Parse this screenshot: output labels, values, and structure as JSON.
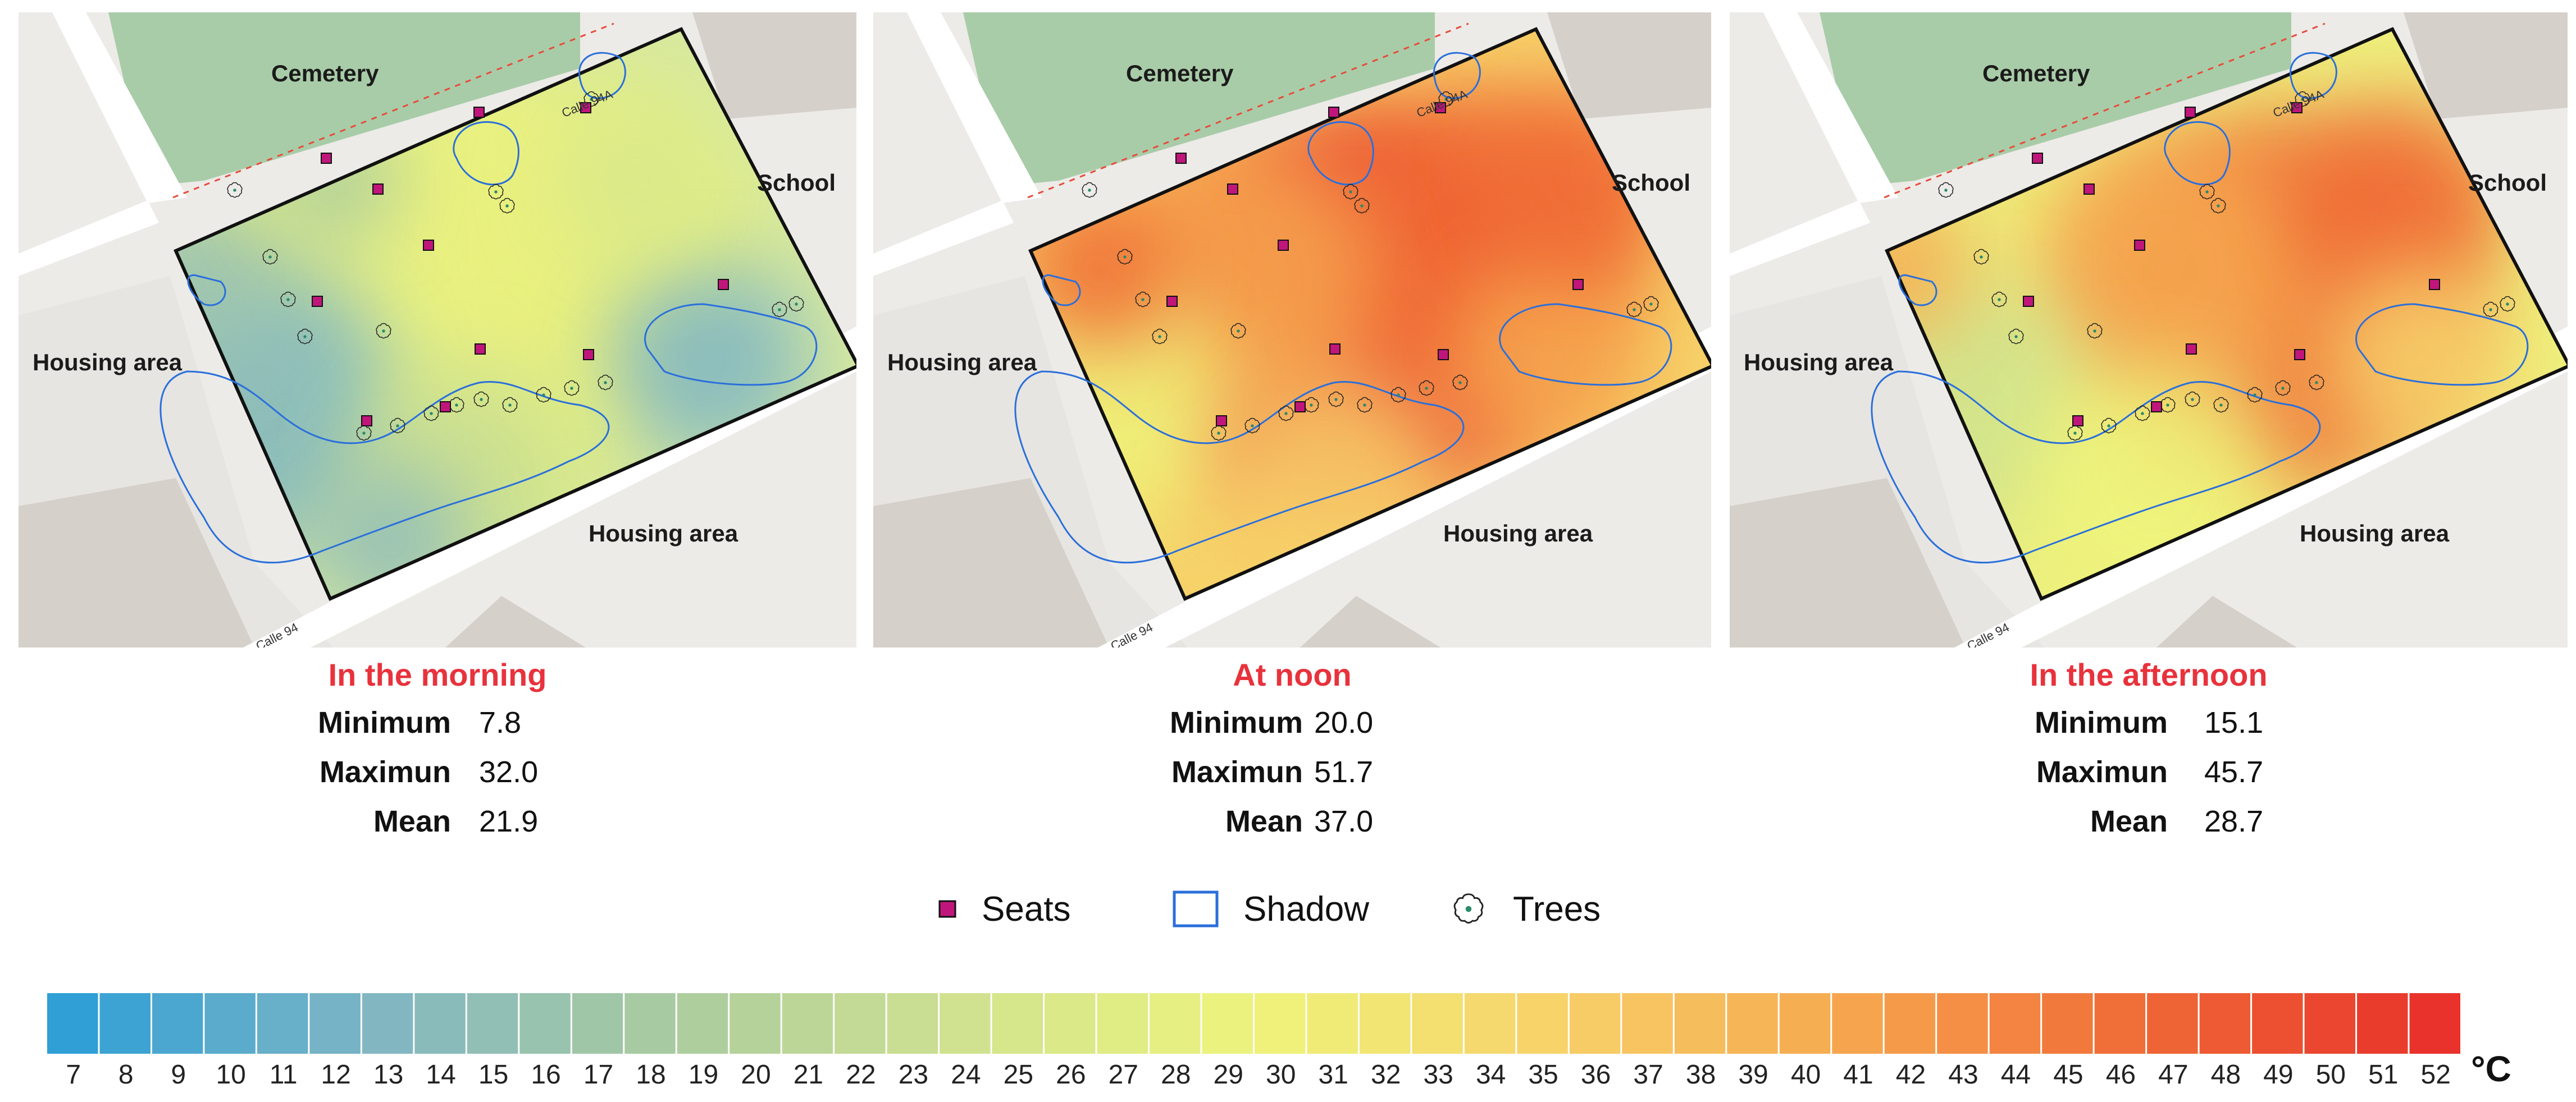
{
  "panels": [
    {
      "period": "In the morning",
      "stats": {
        "min_label": "Minimum",
        "min": "7.8",
        "max_label": "Maximun",
        "max": "32.0",
        "mean_label": "Mean",
        "mean": "21.9"
      },
      "labels": {
        "cemetery": "Cemetery",
        "school": "School",
        "housing_left": "Housing area",
        "housing_bottom": "Housing area",
        "road_top": "Calle 94A",
        "road_bottom": "Calle 94"
      }
    },
    {
      "period": "At noon",
      "stats": {
        "min_label": "Minimum",
        "min": "20.0",
        "max_label": "Maximun",
        "max": "51.7",
        "mean_label": "Mean",
        "mean": "37.0"
      },
      "labels": {
        "cemetery": "Cemetery",
        "school": "School",
        "housing_left": "Housing area",
        "housing_bottom": "Housing area",
        "road_top": "Calle 94A",
        "road_bottom": "Calle 94"
      }
    },
    {
      "period": "In the afternoon",
      "stats": {
        "min_label": "Minimum",
        "min": "15.1",
        "max_label": "Maximun",
        "max": "45.7",
        "mean_label": "Mean",
        "mean": "28.7"
      },
      "labels": {
        "cemetery": "Cemetery",
        "school": "School",
        "housing_left": "Housing area",
        "housing_bottom": "Housing area",
        "road_top": "Calle 94A",
        "road_bottom": "Calle 94"
      }
    }
  ],
  "legend": {
    "seats": "Seats",
    "shadow": "Shadow",
    "trees": "Trees"
  },
  "colors": {
    "seat": "#c0167c",
    "shadow": "#2a6fdb",
    "title_red": "#e8323c",
    "cemetery": "#a9cca8"
  },
  "scale": {
    "unit": "°C",
    "values": [
      "7",
      "8",
      "9",
      "10",
      "11",
      "12",
      "13",
      "14",
      "15",
      "16",
      "17",
      "18",
      "19",
      "20",
      "21",
      "22",
      "23",
      "24",
      "25",
      "26",
      "27",
      "28",
      "29",
      "30",
      "31",
      "32",
      "33",
      "34",
      "35",
      "36",
      "37",
      "38",
      "39",
      "40",
      "41",
      "42",
      "43",
      "44",
      "45",
      "46",
      "47",
      "48",
      "49",
      "50",
      "51",
      "52"
    ],
    "stops": [
      "#2f9fd5",
      "#7fb6c4",
      "#a9cba0",
      "#cfe28f",
      "#eef47c",
      "#f7d26a",
      "#f6a84f",
      "#f06a36",
      "#e8322b"
    ]
  }
}
